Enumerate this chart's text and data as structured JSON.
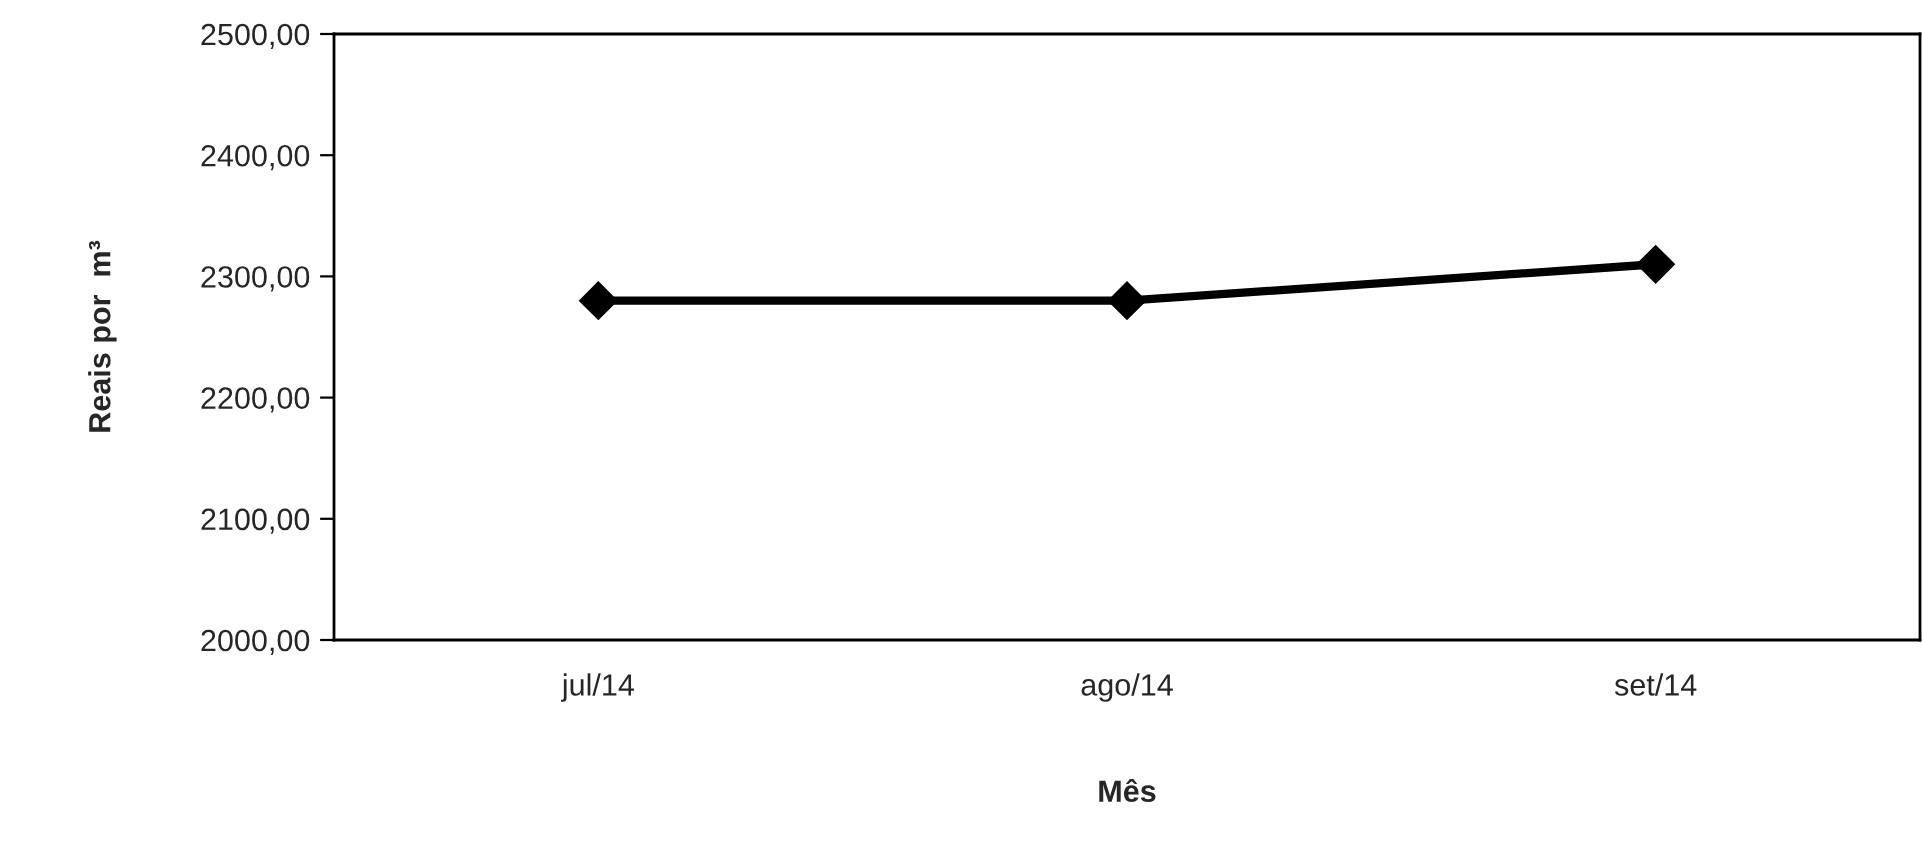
{
  "chart_data": {
    "type": "line",
    "xlabel": "Mês",
    "ylabel": "Reais por  m³",
    "categories": [
      "jul/14",
      "ago/14",
      "set/14"
    ],
    "series": [
      {
        "color": "#000000",
        "values": [
          2280,
          2280,
          2310
        ]
      }
    ],
    "ylim": [
      2000,
      2500
    ],
    "yticks": [
      {
        "value": 2000,
        "label": "2000,00"
      },
      {
        "value": 2100,
        "label": "2100,00"
      },
      {
        "value": 2200,
        "label": "2200,00"
      },
      {
        "value": 2300,
        "label": "2300,00"
      },
      {
        "value": 2400,
        "label": "2400,00"
      },
      {
        "value": 2500,
        "label": "2500,00"
      }
    ],
    "grid": false,
    "legend": false,
    "marker": "diamond",
    "line_style": "solid"
  }
}
